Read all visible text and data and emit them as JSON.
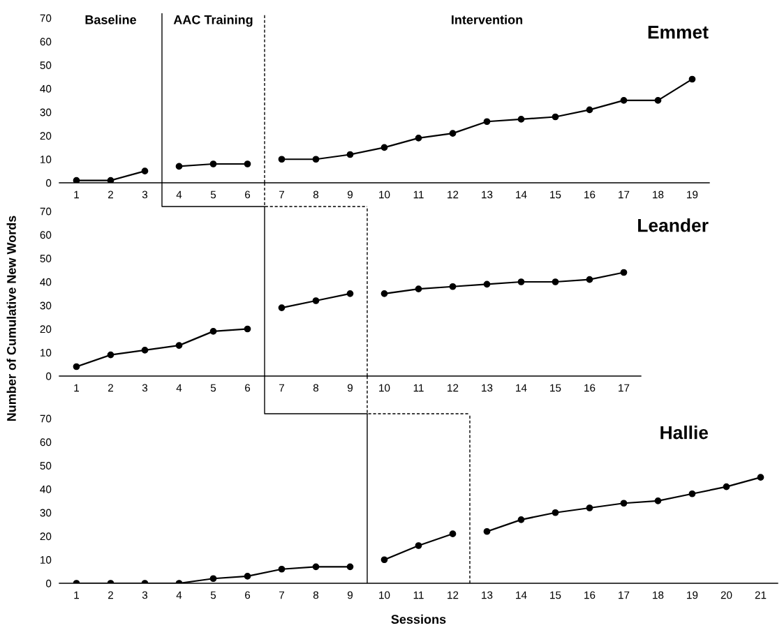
{
  "chart_data": [
    {
      "type": "line",
      "title": "Emmet",
      "annotations": [
        "Baseline",
        "AAC Training",
        "Intervention"
      ],
      "xlim": [
        0.5,
        19.5
      ],
      "xticks": [
        1,
        2,
        3,
        4,
        5,
        6,
        7,
        8,
        9,
        10,
        11,
        12,
        13,
        14,
        15,
        16,
        17,
        18,
        19
      ],
      "ylim": [
        0,
        72
      ],
      "yticks": [
        0,
        10,
        20,
        30,
        40,
        50,
        60,
        70
      ],
      "grid": false,
      "marker": "circle",
      "line_style": "solid",
      "series": [
        {
          "color": "#000000",
          "x": [
            1,
            2,
            3
          ],
          "values": [
            1,
            1,
            5
          ]
        },
        {
          "color": "#000000",
          "x": [
            4,
            5,
            6
          ],
          "values": [
            7,
            8,
            8
          ]
        },
        {
          "color": "#000000",
          "x": [
            7,
            8,
            9,
            10,
            11,
            12,
            13,
            14,
            15,
            16,
            17,
            18,
            19
          ],
          "values": [
            10,
            10,
            12,
            15,
            19,
            21,
            26,
            27,
            28,
            31,
            35,
            35,
            44
          ]
        }
      ],
      "ref_lines": [
        {
          "axis": "x",
          "value": 3.5,
          "color": "#000000",
          "line_style": "solid"
        },
        {
          "axis": "x",
          "value": 6.5,
          "color": "#000000",
          "line_style": "dashed"
        }
      ]
    },
    {
      "type": "line",
      "title": "Leander",
      "ylabel": "Number of Cumulative New Words",
      "xlim": [
        0.5,
        17.5
      ],
      "xticks": [
        1,
        2,
        3,
        4,
        5,
        6,
        7,
        8,
        9,
        10,
        11,
        12,
        13,
        14,
        15,
        16,
        17
      ],
      "ylim": [
        0,
        72
      ],
      "yticks": [
        0,
        10,
        20,
        30,
        40,
        50,
        60,
        70
      ],
      "grid": false,
      "marker": "circle",
      "line_style": "solid",
      "series": [
        {
          "color": "#000000",
          "x": [
            1,
            2,
            3,
            4,
            5,
            6
          ],
          "values": [
            4,
            9,
            11,
            13,
            19,
            20
          ]
        },
        {
          "color": "#000000",
          "x": [
            7,
            8,
            9
          ],
          "values": [
            29,
            32,
            35
          ]
        },
        {
          "color": "#000000",
          "x": [
            10,
            11,
            12,
            13,
            14,
            15,
            16,
            17
          ],
          "values": [
            35,
            37,
            38,
            39,
            40,
            40,
            41,
            44
          ]
        }
      ],
      "ref_lines": [
        {
          "axis": "x",
          "value": 6.5,
          "color": "#000000",
          "line_style": "solid"
        },
        {
          "axis": "x",
          "value": 9.5,
          "color": "#000000",
          "line_style": "dashed"
        }
      ]
    },
    {
      "type": "line",
      "title": "Hallie",
      "xlabel": "Sessions",
      "xlim": [
        0.5,
        21.5
      ],
      "xticks": [
        1,
        2,
        3,
        4,
        5,
        6,
        7,
        8,
        9,
        10,
        11,
        12,
        13,
        14,
        15,
        16,
        17,
        18,
        19,
        20,
        21
      ],
      "ylim": [
        0,
        72
      ],
      "yticks": [
        0,
        10,
        20,
        30,
        40,
        50,
        60,
        70
      ],
      "grid": false,
      "marker": "circle",
      "line_style": "solid",
      "series": [
        {
          "color": "#000000",
          "x": [
            1,
            2,
            3,
            4,
            5,
            6,
            7,
            8,
            9
          ],
          "values": [
            0,
            0,
            0,
            0,
            2,
            3,
            6,
            7,
            7
          ]
        },
        {
          "color": "#000000",
          "x": [
            10,
            11,
            12
          ],
          "values": [
            10,
            16,
            21
          ]
        },
        {
          "color": "#000000",
          "x": [
            13,
            14,
            15,
            16,
            17,
            18,
            19,
            20,
            21
          ],
          "values": [
            22,
            27,
            30,
            32,
            34,
            35,
            38,
            41,
            45
          ]
        }
      ],
      "ref_lines": [
        {
          "axis": "x",
          "value": 9.5,
          "color": "#000000",
          "line_style": "solid"
        },
        {
          "axis": "x",
          "value": 12.5,
          "color": "#000000",
          "line_style": "dashed"
        }
      ]
    }
  ]
}
